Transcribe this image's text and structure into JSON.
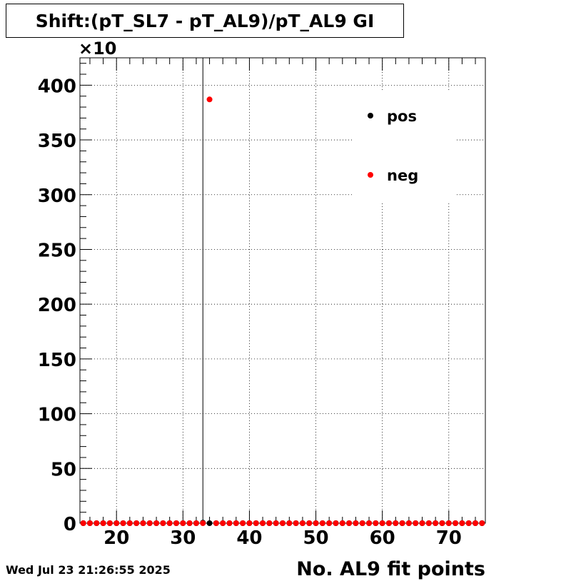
{
  "title": "Shift:(pT_SL7 - pT_AL9)/pT_AL9 GI",
  "timestamp": "Wed Jul 23 21:26:55 2025",
  "colors": {
    "pos": "#000000",
    "neg": "#ff0000",
    "grid": "#000000",
    "background": "#ffffff"
  },
  "chart_data": {
    "type": "scatter",
    "title": "Shift:(pT_SL7 - pT_AL9)/pT_AL9 GI",
    "xlabel": "No. AL9 fit points",
    "ylabel": "",
    "y_multiplier": "×10",
    "xlim": [
      14.5,
      75.5
    ],
    "ylim": [
      0,
      425
    ],
    "xticks": [
      "20",
      "30",
      "40",
      "50",
      "60",
      "70"
    ],
    "yticks": [
      "0",
      "50",
      "100",
      "150",
      "200",
      "250",
      "300",
      "350",
      "400"
    ],
    "grid": true,
    "legend_position": "top-right",
    "vertical_line_x": 33,
    "series": [
      {
        "name": "pos",
        "color": "#000000",
        "x": [
          15,
          16,
          17,
          18,
          19,
          20,
          21,
          22,
          23,
          24,
          25,
          26,
          27,
          28,
          29,
          30,
          31,
          32,
          33,
          34,
          35,
          36,
          37,
          38,
          39,
          40,
          41,
          42,
          43,
          44,
          45,
          46,
          47,
          48,
          49,
          50,
          51,
          52,
          53,
          54,
          55,
          56,
          57,
          58,
          59,
          60,
          61,
          62,
          63,
          64,
          65,
          66,
          67,
          68,
          69,
          70,
          71,
          72,
          73,
          74,
          75
        ],
        "y": [
          0,
          0,
          0,
          0,
          0,
          0,
          0,
          0,
          0,
          0,
          0,
          0,
          0,
          0,
          0,
          0,
          0,
          0,
          0.5,
          0,
          0,
          0,
          0,
          0,
          0,
          0,
          0,
          0,
          0,
          0,
          0,
          0,
          0,
          0,
          0,
          0,
          0,
          0,
          0,
          0,
          0,
          0,
          0,
          0,
          0,
          0,
          0,
          0,
          0,
          0,
          0,
          0,
          0,
          0,
          0,
          0,
          0,
          0,
          0,
          0,
          0
        ]
      },
      {
        "name": "neg",
        "color": "#ff0000",
        "x": [
          15,
          16,
          17,
          18,
          19,
          20,
          21,
          22,
          23,
          24,
          25,
          26,
          27,
          28,
          29,
          30,
          31,
          32,
          33,
          34,
          35,
          36,
          37,
          38,
          39,
          40,
          41,
          42,
          43,
          44,
          45,
          46,
          47,
          48,
          49,
          50,
          51,
          52,
          53,
          54,
          55,
          56,
          57,
          58,
          59,
          60,
          61,
          62,
          63,
          64,
          65,
          66,
          67,
          68,
          69,
          70,
          71,
          72,
          73,
          74,
          75
        ],
        "y": [
          0,
          0,
          0,
          0,
          0,
          0,
          0,
          0,
          0,
          0,
          0,
          0,
          0,
          0,
          0,
          0,
          0,
          0,
          0,
          387,
          0,
          0,
          0,
          0,
          0,
          0,
          0,
          0,
          0,
          0,
          0,
          0,
          0,
          0,
          0,
          0,
          0,
          0,
          0,
          0,
          0,
          0,
          0,
          0,
          0,
          0,
          0,
          0,
          0,
          0,
          0,
          0,
          0,
          0,
          0,
          0,
          0,
          0,
          0,
          0,
          0
        ]
      }
    ]
  }
}
